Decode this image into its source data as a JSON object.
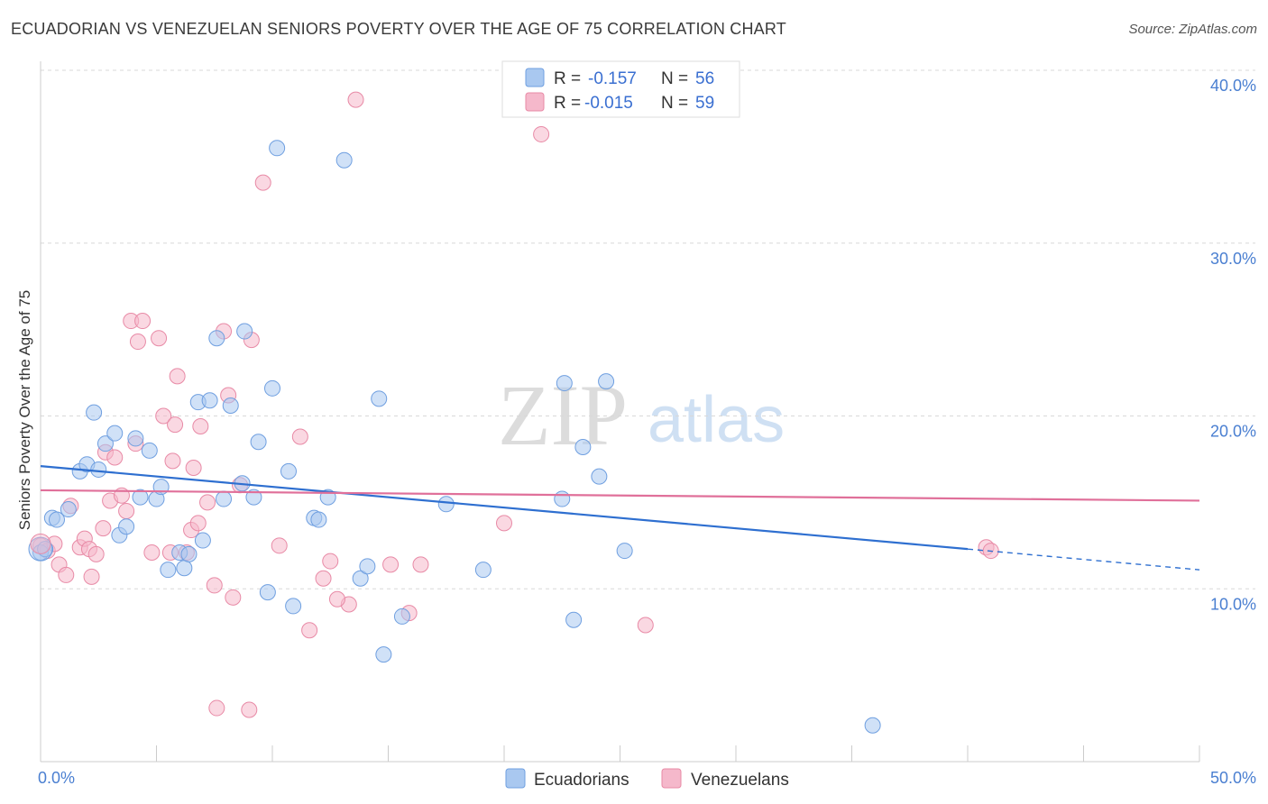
{
  "header": {
    "title": "ECUADORIAN VS VENEZUELAN SENIORS POVERTY OVER THE AGE OF 75 CORRELATION CHART",
    "source": "Source: ZipAtlas.com"
  },
  "watermark": {
    "zip": "ZIP",
    "atlas": "atlas"
  },
  "legend_top": {
    "rows": [
      {
        "r_label": "R =",
        "r_value": "-0.157",
        "n_label": "N =",
        "n_value": "56",
        "color": "#a9c8f0"
      },
      {
        "r_label": "R =",
        "r_value": "-0.015",
        "n_label": "N =",
        "n_value": "59",
        "color": "#f5b8cb"
      }
    ]
  },
  "legend_bottom": {
    "items": [
      "Ecuadorians",
      "Venezuelans"
    ]
  },
  "chart_data": {
    "type": "scatter",
    "title": "ECUADORIAN VS VENEZUELAN SENIORS POVERTY OVER THE AGE OF 75 CORRELATION CHART",
    "xlabel": "",
    "ylabel": "Seniors Poverty Over the Age of 75",
    "xlim": [
      0,
      50
    ],
    "ylim": [
      0,
      40
    ],
    "x_tick_labels": [
      "0.0%",
      "50.0%"
    ],
    "y_ticks": [
      10,
      20,
      30,
      40
    ],
    "y_tick_labels": [
      "10.0%",
      "20.0%",
      "30.0%",
      "40.0%"
    ],
    "grid": true,
    "series": [
      {
        "name": "Ecuadorians",
        "color": "#a9c8f0",
        "stroke": "#6f9fe0",
        "trend_color": "#2e6fd0",
        "trend": {
          "x0": 0,
          "y0": 17.1,
          "x1": 40,
          "y1": 12.3,
          "dash_to_x": 50,
          "dash_to_y": 11.1
        },
        "points": [
          [
            0.0,
            12.1
          ],
          [
            0.5,
            14.1
          ],
          [
            0.7,
            14.0
          ],
          [
            1.2,
            14.6
          ],
          [
            1.7,
            16.8
          ],
          [
            2.0,
            17.2
          ],
          [
            2.3,
            20.2
          ],
          [
            2.5,
            16.9
          ],
          [
            2.8,
            18.4
          ],
          [
            3.2,
            19.0
          ],
          [
            3.4,
            13.1
          ],
          [
            3.7,
            13.6
          ],
          [
            4.1,
            18.7
          ],
          [
            4.3,
            15.3
          ],
          [
            4.7,
            18.0
          ],
          [
            5.0,
            15.2
          ],
          [
            5.2,
            15.9
          ],
          [
            5.5,
            11.1
          ],
          [
            6.0,
            12.1
          ],
          [
            6.2,
            11.2
          ],
          [
            6.4,
            12.0
          ],
          [
            6.8,
            20.8
          ],
          [
            7.0,
            12.8
          ],
          [
            7.3,
            20.9
          ],
          [
            7.6,
            24.5
          ],
          [
            7.9,
            15.2
          ],
          [
            8.2,
            20.6
          ],
          [
            8.7,
            16.1
          ],
          [
            8.8,
            24.9
          ],
          [
            9.2,
            15.3
          ],
          [
            9.4,
            18.5
          ],
          [
            9.8,
            9.8
          ],
          [
            10.0,
            21.6
          ],
          [
            10.2,
            35.5
          ],
          [
            10.7,
            16.8
          ],
          [
            10.9,
            9.0
          ],
          [
            11.8,
            14.1
          ],
          [
            12.0,
            14.0
          ],
          [
            12.4,
            15.3
          ],
          [
            13.1,
            34.8
          ],
          [
            13.8,
            10.6
          ],
          [
            14.1,
            11.3
          ],
          [
            14.6,
            21.0
          ],
          [
            14.8,
            6.2
          ],
          [
            15.6,
            8.4
          ],
          [
            17.5,
            14.9
          ],
          [
            19.1,
            11.1
          ],
          [
            22.5,
            15.2
          ],
          [
            22.6,
            21.9
          ],
          [
            23.0,
            8.2
          ],
          [
            23.4,
            18.2
          ],
          [
            24.1,
            16.5
          ],
          [
            24.4,
            22.0
          ],
          [
            25.2,
            12.2
          ],
          [
            35.9,
            2.1
          ],
          [
            0.2,
            12.3
          ]
        ]
      },
      {
        "name": "Venezuelans",
        "color": "#f5b8cb",
        "stroke": "#e88aa6",
        "trend_color": "#e0709a",
        "trend": {
          "x0": 0,
          "y0": 15.7,
          "x1": 50,
          "y1": 15.1
        },
        "points": [
          [
            0.0,
            12.5
          ],
          [
            0.3,
            12.2
          ],
          [
            0.6,
            12.6
          ],
          [
            0.8,
            11.4
          ],
          [
            1.1,
            10.8
          ],
          [
            1.3,
            14.8
          ],
          [
            1.7,
            12.4
          ],
          [
            1.9,
            12.9
          ],
          [
            2.1,
            12.3
          ],
          [
            2.2,
            10.7
          ],
          [
            2.4,
            12.0
          ],
          [
            2.7,
            13.5
          ],
          [
            2.8,
            17.9
          ],
          [
            3.0,
            15.1
          ],
          [
            3.2,
            17.6
          ],
          [
            3.5,
            15.4
          ],
          [
            3.7,
            14.5
          ],
          [
            3.9,
            25.5
          ],
          [
            4.1,
            18.4
          ],
          [
            4.2,
            24.3
          ],
          [
            4.4,
            25.5
          ],
          [
            4.8,
            12.1
          ],
          [
            5.1,
            24.5
          ],
          [
            5.3,
            20.0
          ],
          [
            5.6,
            12.1
          ],
          [
            5.7,
            17.4
          ],
          [
            5.8,
            19.5
          ],
          [
            5.9,
            22.3
          ],
          [
            6.3,
            12.1
          ],
          [
            6.5,
            13.4
          ],
          [
            6.6,
            17.0
          ],
          [
            6.8,
            13.8
          ],
          [
            6.9,
            19.4
          ],
          [
            7.2,
            15.0
          ],
          [
            7.5,
            10.2
          ],
          [
            7.6,
            3.1
          ],
          [
            7.9,
            24.9
          ],
          [
            8.1,
            21.2
          ],
          [
            8.3,
            9.5
          ],
          [
            8.6,
            16.0
          ],
          [
            9.0,
            3.0
          ],
          [
            9.1,
            24.4
          ],
          [
            9.6,
            33.5
          ],
          [
            10.3,
            12.5
          ],
          [
            11.2,
            18.8
          ],
          [
            11.6,
            7.6
          ],
          [
            12.2,
            10.6
          ],
          [
            12.5,
            11.6
          ],
          [
            13.3,
            9.1
          ],
          [
            13.6,
            38.3
          ],
          [
            15.1,
            11.4
          ],
          [
            15.9,
            8.6
          ],
          [
            16.4,
            11.4
          ],
          [
            20.0,
            13.8
          ],
          [
            21.6,
            36.3
          ],
          [
            26.1,
            7.9
          ],
          [
            40.8,
            12.4
          ],
          [
            41.0,
            12.2
          ],
          [
            12.8,
            9.4
          ]
        ]
      }
    ]
  }
}
